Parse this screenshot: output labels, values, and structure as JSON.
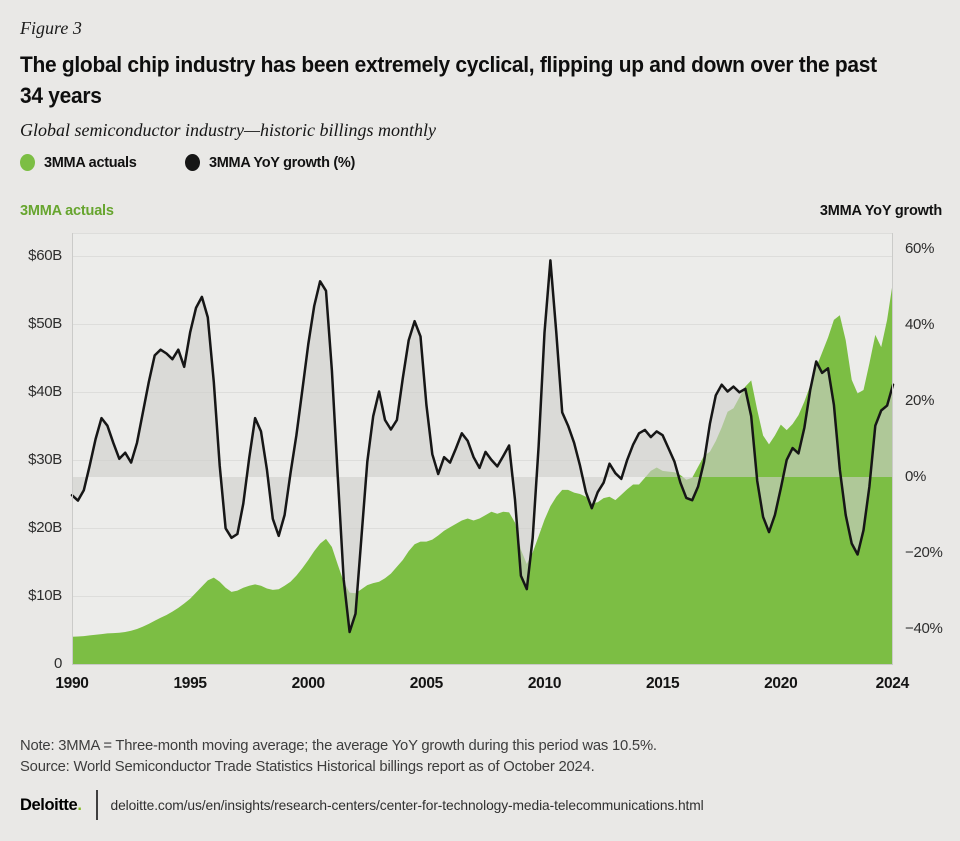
{
  "figure_label": "Figure 3",
  "title": {
    "line1": "The global chip industry has been extremely cyclical, flipping up and down over the past",
    "line2": "34 years"
  },
  "subtitle": "Global semiconductor industry—historic billings monthly",
  "legend": [
    {
      "label": "3MMA actuals",
      "color": "#7CBE44"
    },
    {
      "label": "3MMA YoY growth (%)",
      "color": "#161616"
    }
  ],
  "left_axis": {
    "title": "3MMA actuals",
    "title_color": "#67A52F",
    "ticks": [
      {
        "label": "$60B",
        "value": 60
      },
      {
        "label": "$50B",
        "value": 50
      },
      {
        "label": "$40B",
        "value": 40
      },
      {
        "label": "$30B",
        "value": 30
      },
      {
        "label": "$20B",
        "value": 20
      },
      {
        "label": "$10B",
        "value": 10
      },
      {
        "label": "0",
        "value": 0
      }
    ]
  },
  "right_axis": {
    "title": "3MMA YoY growth",
    "ticks": [
      {
        "label": "60%",
        "value": 60
      },
      {
        "label": "40%",
        "value": 40
      },
      {
        "label": "20%",
        "value": 20
      },
      {
        "label": "0%",
        "value": 0
      },
      {
        "label": "−20%",
        "value": -20
      },
      {
        "label": "−40%",
        "value": -40
      }
    ]
  },
  "x_axis": {
    "ticks": [
      {
        "label": "1990",
        "year": 1990
      },
      {
        "label": "1995",
        "year": 1995
      },
      {
        "label": "2000",
        "year": 2000
      },
      {
        "label": "2005",
        "year": 2005
      },
      {
        "label": "2010",
        "year": 2010
      },
      {
        "label": "2015",
        "year": 2015
      },
      {
        "label": "2020",
        "year": 2020
      },
      {
        "label": "2024",
        "year": 2024.72
      }
    ]
  },
  "note": "Note: 3MMA = Three-month moving average; the average YoY growth during this period was 10.5%.",
  "source": "Source: World Semiconductor Trade Statistics Historical billings report as of October 2024.",
  "footer": {
    "brand": "Deloitte",
    "brand_dot": ".",
    "url": "deloitte.com/us/en/insights/research-centers/center-for-technology-media-telecommunications.html"
  },
  "chart_data": {
    "type": "area+line (dual axis)",
    "title": "Global semiconductor industry—historic billings monthly",
    "x_start": 1990.0,
    "x_step_years": 0.25,
    "x_end": 2024.75,
    "left_ylim_billions": [
      0,
      63
    ],
    "right_ylim_percent": [
      -49,
      64
    ],
    "grid": "horizontal at left-axis ticks",
    "legend_position": "top-left",
    "series": [
      {
        "name": "3MMA actuals (US$B, left axis)",
        "type": "area",
        "color": "#7CBE44",
        "values": [
          4.0,
          4.05,
          4.1,
          4.2,
          4.3,
          4.4,
          4.5,
          4.55,
          4.6,
          4.7,
          4.9,
          5.15,
          5.5,
          5.9,
          6.35,
          6.8,
          7.2,
          7.7,
          8.25,
          8.9,
          9.6,
          10.5,
          11.4,
          12.3,
          12.7,
          12.1,
          11.2,
          10.6,
          10.8,
          11.2,
          11.5,
          11.7,
          11.5,
          11.1,
          10.9,
          11.0,
          11.5,
          12.1,
          13.0,
          14.1,
          15.3,
          16.6,
          17.7,
          18.4,
          17.2,
          14.6,
          12.1,
          10.5,
          10.4,
          11.0,
          11.6,
          11.9,
          12.1,
          12.6,
          13.3,
          14.3,
          15.3,
          16.6,
          17.6,
          18.0,
          18.0,
          18.3,
          18.9,
          19.6,
          20.1,
          20.6,
          21.1,
          21.4,
          21.1,
          21.4,
          21.9,
          22.4,
          22.1,
          22.4,
          22.3,
          20.8,
          16.8,
          14.7,
          16.4,
          18.8,
          21.2,
          23.2,
          24.6,
          25.6,
          25.6,
          25.2,
          25.0,
          24.6,
          23.6,
          23.8,
          24.4,
          24.6,
          24.1,
          24.9,
          25.7,
          26.4,
          26.4,
          27.4,
          28.4,
          28.9,
          28.4,
          28.3,
          28.2,
          27.8,
          27.1,
          27.4,
          29.0,
          30.6,
          31.2,
          32.8,
          34.8,
          37.1,
          37.6,
          39.2,
          40.8,
          41.7,
          37.4,
          33.6,
          32.3,
          33.6,
          35.2,
          34.4,
          35.3,
          36.6,
          38.6,
          41.0,
          43.6,
          45.8,
          48.0,
          50.6,
          51.3,
          47.6,
          41.8,
          39.8,
          40.3,
          44.2,
          48.4,
          46.6,
          50.6,
          56.3
        ]
      },
      {
        "name": "3MMA YoY growth (%, right axis)",
        "type": "line with fill to 0% baseline",
        "color": "#161616",
        "fill": "rgba(206,206,204,0.62)",
        "values": [
          -4.8,
          -6.2,
          -3.5,
          3,
          10,
          15.5,
          13.5,
          9,
          4.8,
          6.4,
          3.8,
          9,
          17,
          25,
          32,
          33.5,
          32.5,
          31,
          33.5,
          29,
          38,
          44.5,
          47.4,
          42,
          25,
          3,
          -13.5,
          -16,
          -15,
          -7,
          5,
          15.5,
          12,
          2,
          -11,
          -15.5,
          -10,
          1,
          11,
          23,
          35,
          45,
          51.5,
          49,
          28,
          0,
          -27,
          -40.8,
          -36,
          -16,
          4,
          16,
          22.5,
          15,
          12.5,
          15,
          26,
          36,
          41,
          37,
          19,
          6,
          0.8,
          5.2,
          3.8,
          7.5,
          11.5,
          9.5,
          5.2,
          2.4,
          6.6,
          4.5,
          2.8,
          5.5,
          8.3,
          -6,
          -26,
          -29.5,
          -16,
          8,
          38,
          57,
          38,
          17,
          13.5,
          9,
          3,
          -4,
          -8.2,
          -4,
          -1.5,
          3.5,
          1,
          -0.5,
          4.5,
          8.5,
          11.5,
          12.4,
          10.5,
          12,
          11,
          7.5,
          4,
          -1.5,
          -5.5,
          -6.1,
          -2.5,
          4,
          14,
          21.5,
          24.3,
          22.5,
          23.8,
          22.3,
          23.2,
          16,
          -1,
          -10.5,
          -14.5,
          -10,
          -3,
          4.5,
          7.6,
          6.2,
          13,
          23,
          30.4,
          27.4,
          28.6,
          19,
          2,
          -10,
          -17.5,
          -20.4,
          -14,
          -2.5,
          13.5,
          17.5,
          18.8,
          24.3
        ]
      }
    ]
  }
}
